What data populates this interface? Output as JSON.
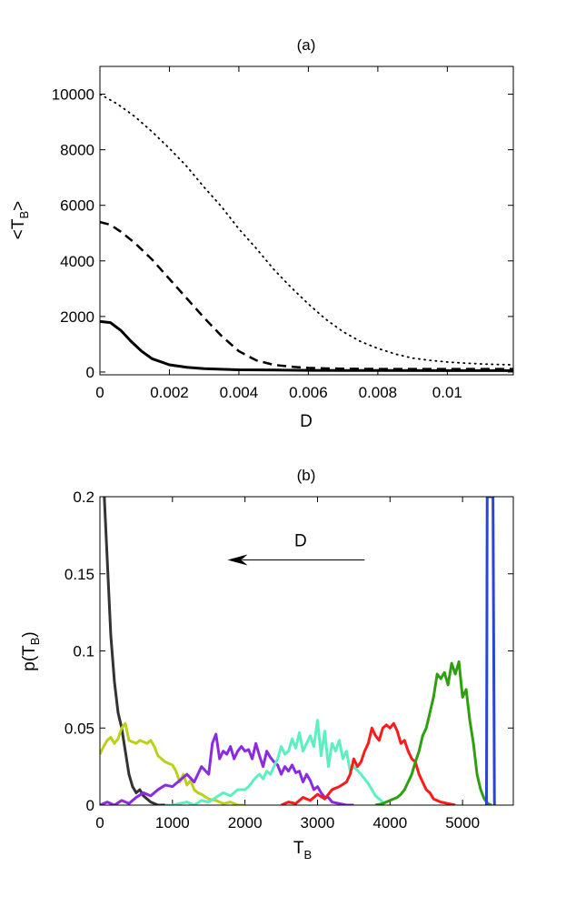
{
  "chart_data": [
    {
      "type": "line",
      "title": "(a)",
      "xlabel": "D",
      "ylabel": {
        "main": "<T",
        "sub": "B",
        "close": ">"
      },
      "xlim": [
        0,
        0.0119
      ],
      "ylim": [
        -100,
        11000
      ],
      "xticks": [
        0,
        0.002,
        0.004,
        0.006,
        0.008,
        0.01
      ],
      "xtick_labels": [
        "0",
        "0.002",
        "0.004",
        "0.006",
        "0.008",
        "0.01"
      ],
      "yticks": [
        0,
        2000,
        4000,
        6000,
        8000,
        10000
      ],
      "ytick_labels": [
        "0",
        "2000",
        "4000",
        "6000",
        "8000",
        "10000"
      ],
      "series": [
        {
          "name": "dotted",
          "style": "dotted",
          "color": "#000000",
          "x": [
            0,
            0.0005,
            0.001,
            0.0015,
            0.002,
            0.0025,
            0.003,
            0.0035,
            0.004,
            0.0045,
            0.005,
            0.0055,
            0.006,
            0.0065,
            0.007,
            0.0075,
            0.008,
            0.0085,
            0.009,
            0.0095,
            0.01,
            0.0105,
            0.011,
            0.0115,
            0.0119
          ],
          "values": [
            10000,
            9650,
            9200,
            8650,
            8050,
            7400,
            6650,
            5950,
            5150,
            4450,
            3700,
            3050,
            2450,
            1900,
            1450,
            1100,
            850,
            650,
            500,
            420,
            360,
            320,
            290,
            270,
            260
          ]
        },
        {
          "name": "dashed",
          "style": "dashed",
          "color": "#000000",
          "x": [
            0,
            0.0003,
            0.0006,
            0.001,
            0.0015,
            0.002,
            0.0025,
            0.003,
            0.0035,
            0.004,
            0.0045,
            0.005,
            0.0055,
            0.006,
            0.0065,
            0.007,
            0.008,
            0.009,
            0.01,
            0.011,
            0.0119
          ],
          "values": [
            5400,
            5300,
            5050,
            4650,
            4050,
            3350,
            2650,
            1950,
            1300,
            750,
            420,
            260,
            190,
            150,
            130,
            120,
            110,
            110,
            110,
            110,
            110
          ]
        },
        {
          "name": "solid",
          "style": "solid",
          "color": "#000000",
          "x": [
            0,
            0.0003,
            0.0006,
            0.0009,
            0.0012,
            0.0015,
            0.002,
            0.0025,
            0.003,
            0.004,
            0.005,
            0.006,
            0.008,
            0.01,
            0.0119
          ],
          "values": [
            1820,
            1780,
            1500,
            1100,
            750,
            480,
            260,
            170,
            120,
            80,
            70,
            60,
            55,
            50,
            50
          ]
        }
      ]
    },
    {
      "type": "line",
      "title": "(b)",
      "xlabel": {
        "main": "T",
        "sub": "B"
      },
      "ylabel": {
        "main": "p(T",
        "sub": "B",
        "close": ")"
      },
      "xlim": [
        0,
        5700
      ],
      "ylim": [
        0,
        0.2
      ],
      "xticks": [
        0,
        1000,
        2000,
        3000,
        4000,
        5000
      ],
      "xtick_labels": [
        "0",
        "1000",
        "2000",
        "3000",
        "4000",
        "5000"
      ],
      "yticks": [
        0,
        0.05,
        0.1,
        0.15,
        0.2
      ],
      "ytick_labels": [
        "0",
        "0.05",
        "0.1",
        "0.15",
        "0.2"
      ],
      "annotation": {
        "text": "D",
        "arrow_from": [
          3650,
          0.159
        ],
        "arrow_to": [
          1760,
          0.159
        ]
      },
      "series": [
        {
          "name": "dark-gray",
          "color": "#333333",
          "x": [
            60,
            100,
            150,
            200,
            250,
            300,
            350,
            400,
            450,
            500,
            550,
            600,
            700,
            800,
            900
          ],
          "values": [
            0.2,
            0.16,
            0.11,
            0.08,
            0.06,
            0.05,
            0.035,
            0.02,
            0.012,
            0.008,
            0.01,
            0.006,
            0.002,
            0,
            0
          ]
        },
        {
          "name": "yellow-green",
          "color": "#bcd01b",
          "x": [
            0,
            50,
            100,
            150,
            200,
            250,
            300,
            350,
            400,
            450,
            500,
            550,
            600,
            650,
            700,
            750,
            800,
            850,
            900,
            950,
            1000,
            1050,
            1100,
            1150,
            1200,
            1250,
            1300,
            1350,
            1400,
            1500,
            1600,
            1700,
            1800,
            1900,
            2000
          ],
          "values": [
            0.033,
            0.038,
            0.042,
            0.044,
            0.04,
            0.043,
            0.05,
            0.053,
            0.042,
            0.041,
            0.04,
            0.042,
            0.041,
            0.04,
            0.042,
            0.038,
            0.032,
            0.03,
            0.028,
            0.027,
            0.026,
            0.022,
            0.015,
            0.02,
            0.013,
            0.016,
            0.01,
            0.008,
            0.007,
            0.004,
            0.003,
            0.001,
            0.002,
            0,
            0
          ]
        },
        {
          "name": "purple",
          "color": "#8a2be2",
          "x": [
            0,
            100,
            200,
            300,
            400,
            500,
            600,
            700,
            800,
            900,
            1000,
            1100,
            1200,
            1300,
            1400,
            1500,
            1550,
            1600,
            1650,
            1700,
            1750,
            1800,
            1850,
            1900,
            1950,
            2000,
            2050,
            2100,
            2150,
            2200,
            2250,
            2300,
            2350,
            2400,
            2450,
            2500,
            2550,
            2600,
            2650,
            2700,
            2750,
            2800,
            2850,
            2900,
            2950,
            3000,
            3050,
            3100,
            3150,
            3200,
            3300,
            3400,
            3500
          ],
          "values": [
            0,
            0.002,
            0,
            0.003,
            0.001,
            0.005,
            0.008,
            0.006,
            0.01,
            0.013,
            0.012,
            0.016,
            0.02,
            0.015,
            0.025,
            0.02,
            0.04,
            0.046,
            0.03,
            0.035,
            0.033,
            0.038,
            0.03,
            0.035,
            0.038,
            0.035,
            0.036,
            0.03,
            0.04,
            0.032,
            0.025,
            0.035,
            0.031,
            0.028,
            0.026,
            0.02,
            0.025,
            0.022,
            0.026,
            0.021,
            0.022,
            0.015,
            0.02,
            0.016,
            0.01,
            0.012,
            0.008,
            0.005,
            0.005,
            0.002,
            0.001,
            0,
            0
          ]
        },
        {
          "name": "aquamarine",
          "color": "#5cf0c0",
          "x": [
            900,
            1000,
            1100,
            1200,
            1300,
            1400,
            1500,
            1600,
            1700,
            1800,
            1900,
            2000,
            2050,
            2100,
            2150,
            2200,
            2250,
            2300,
            2350,
            2400,
            2450,
            2500,
            2550,
            2600,
            2650,
            2700,
            2750,
            2800,
            2850,
            2900,
            2950,
            3000,
            3050,
            3100,
            3150,
            3200,
            3250,
            3300,
            3350,
            3400,
            3450,
            3500,
            3600,
            3700,
            3800,
            3900
          ],
          "values": [
            0,
            0,
            0.001,
            0.002,
            0,
            0.003,
            0.002,
            0.005,
            0.008,
            0.006,
            0.01,
            0.01,
            0.012,
            0.015,
            0.018,
            0.02,
            0.017,
            0.022,
            0.02,
            0.025,
            0.03,
            0.038,
            0.033,
            0.035,
            0.043,
            0.037,
            0.047,
            0.035,
            0.04,
            0.045,
            0.038,
            0.055,
            0.032,
            0.048,
            0.025,
            0.04,
            0.035,
            0.042,
            0.03,
            0.035,
            0.022,
            0.025,
            0.02,
            0.014,
            0.006,
            0.002
          ]
        },
        {
          "name": "red",
          "color": "#ff1a1a",
          "x": [
            2500,
            2600,
            2700,
            2800,
            2900,
            3000,
            3100,
            3200,
            3300,
            3400,
            3450,
            3500,
            3550,
            3600,
            3650,
            3700,
            3750,
            3800,
            3850,
            3900,
            3950,
            4000,
            4050,
            4100,
            4150,
            4200,
            4250,
            4300,
            4350,
            4400,
            4450,
            4500,
            4550,
            4600,
            4700,
            4800,
            4900
          ],
          "values": [
            0,
            0.002,
            0.001,
            0.005,
            0.003,
            0.007,
            0.004,
            0.01,
            0.012,
            0.015,
            0.02,
            0.03,
            0.025,
            0.028,
            0.035,
            0.04,
            0.05,
            0.045,
            0.042,
            0.05,
            0.052,
            0.05,
            0.053,
            0.048,
            0.04,
            0.042,
            0.035,
            0.03,
            0.028,
            0.02,
            0.015,
            0.01,
            0.008,
            0.004,
            0.002,
            0.001,
            0
          ]
        },
        {
          "name": "green",
          "color": "#2da010",
          "x": [
            3800,
            3900,
            4000,
            4100,
            4150,
            4200,
            4250,
            4300,
            4350,
            4400,
            4450,
            4500,
            4550,
            4600,
            4650,
            4700,
            4750,
            4800,
            4850,
            4900,
            4950,
            5000,
            5050,
            5100,
            5150,
            5200,
            5250,
            5300,
            5350,
            5400
          ],
          "values": [
            0,
            0.001,
            0.003,
            0.005,
            0.007,
            0.01,
            0.015,
            0.02,
            0.028,
            0.035,
            0.045,
            0.05,
            0.06,
            0.07,
            0.085,
            0.082,
            0.086,
            0.078,
            0.092,
            0.085,
            0.093,
            0.07,
            0.075,
            0.055,
            0.04,
            0.02,
            0.01,
            0.004,
            0.001,
            0
          ]
        },
        {
          "name": "blue",
          "color": "#2746d6",
          "x": [
            5330,
            5340,
            5350,
            5360,
            5380,
            5400,
            5420,
            5440
          ],
          "values": [
            0,
            0.2,
            0.2,
            0.2,
            0.2,
            0.2,
            0.2,
            0
          ]
        }
      ]
    }
  ]
}
